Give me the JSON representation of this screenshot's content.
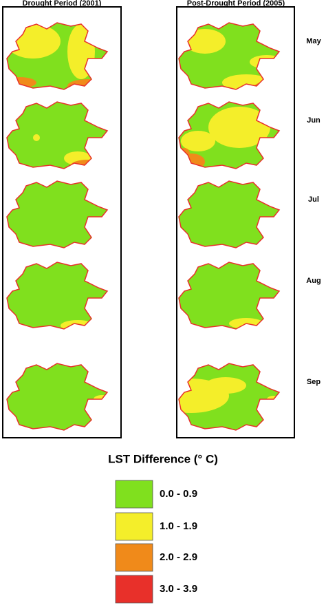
{
  "columns": [
    {
      "title": "Drought Period (2001)"
    },
    {
      "title": "Post-Drought Period (2005)"
    }
  ],
  "months": [
    "May",
    "Jun",
    "Jul",
    "Aug",
    "Sep"
  ],
  "legend": {
    "title": "LST Difference (° C)",
    "items": [
      {
        "label": "0.0 - 0.9",
        "color": "#80e01e"
      },
      {
        "label": "1.0 - 1.9",
        "color": "#f4ee2a"
      },
      {
        "label": "2.0 - 2.9",
        "color": "#f08a1a"
      },
      {
        "label": "3.0 - 3.9",
        "color": "#e8302a"
      }
    ]
  }
}
